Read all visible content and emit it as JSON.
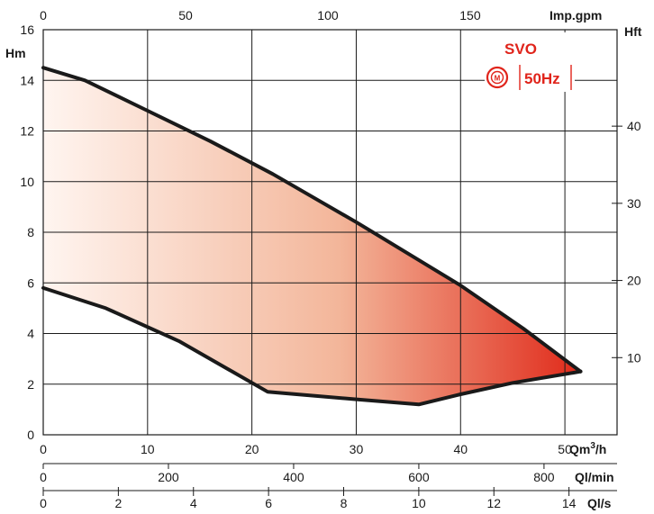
{
  "chart_data": {
    "type": "area",
    "title": "",
    "model_label": "SVO",
    "frequency_label": "50Hz",
    "accent_color": "#e0241b",
    "area_gradient": [
      "#fff5f0",
      "#e02a1a"
    ],
    "grid": true,
    "xaxes": {
      "q_m3h": {
        "label": "Qm",
        "label_sup": "3",
        "label_suffix": "/h",
        "range": [
          0,
          55
        ],
        "ticks": [
          0,
          10,
          20,
          30,
          40,
          50
        ]
      },
      "q_imp": {
        "label": "Imp.gpm",
        "range": [
          0,
          201.6
        ],
        "ticks": [
          0,
          50,
          100,
          150
        ]
      },
      "q_lmin": {
        "label": "Ql/min",
        "range": [
          0,
          916.7
        ],
        "ticks": [
          0,
          200,
          400,
          600,
          800
        ]
      },
      "q_ls": {
        "label": "Ql/s",
        "range": [
          0,
          15.28
        ],
        "ticks": [
          0,
          2,
          4,
          6,
          8,
          10,
          12,
          14
        ]
      }
    },
    "yaxes": {
      "h_m": {
        "label": "Hm",
        "range": [
          0,
          16
        ],
        "ticks": [
          0,
          2,
          4,
          6,
          8,
          10,
          12,
          14,
          16
        ]
      },
      "h_ft": {
        "label": "Hft",
        "range": [
          0,
          52.5
        ],
        "ticks": [
          10,
          20,
          30,
          40
        ]
      }
    },
    "series": [
      {
        "x": [
          0,
          4,
          10,
          16,
          22,
          30,
          40,
          46,
          51.5
        ],
        "y": [
          14.5,
          14.0,
          12.8,
          11.6,
          10.3,
          8.4,
          5.9,
          4.2,
          2.5
        ]
      },
      {
        "x": [
          51.5,
          45,
          40,
          36,
          30,
          21.5,
          13,
          6,
          0
        ],
        "y": [
          2.5,
          2.05,
          1.6,
          1.2,
          1.4,
          1.7,
          3.7,
          5.0,
          5.8
        ]
      }
    ]
  }
}
